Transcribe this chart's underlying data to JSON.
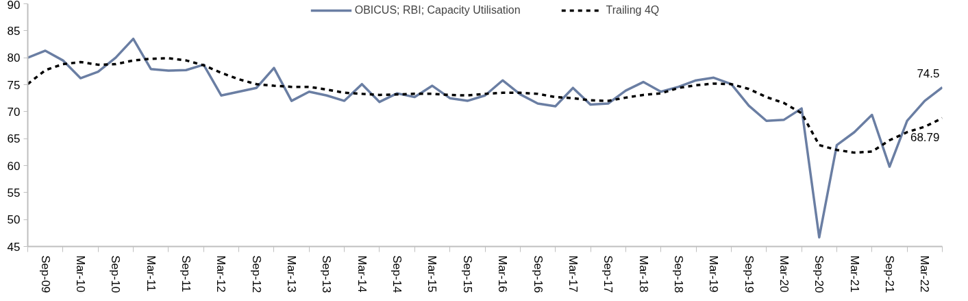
{
  "chart_data": {
    "type": "line",
    "categories": [
      null,
      "Sep-09",
      null,
      "Mar-10",
      null,
      "Sep-10",
      null,
      "Mar-11",
      null,
      "Sep-11",
      null,
      "Mar-12",
      null,
      "Sep-12",
      null,
      "Mar-13",
      null,
      "Sep-13",
      null,
      "Mar-14",
      null,
      "Sep-14",
      null,
      "Mar-15",
      null,
      "Sep-15",
      null,
      "Mar-16",
      null,
      "Sep-16",
      null,
      "Mar-17",
      null,
      "Sep-17",
      null,
      "Mar-18",
      null,
      "Sep-18",
      null,
      "Mar-19",
      null,
      "Sep-19",
      null,
      "Mar-20",
      null,
      "Sep-20",
      null,
      "Mar-21",
      null,
      "Sep-21",
      null,
      "Mar-22",
      null
    ],
    "series": [
      {
        "name": "OBICUS; RBI; Capacity Utilisation",
        "color": "#6a7ea3",
        "line_style": "solid",
        "values": [
          80.0,
          81.3,
          79.5,
          76.2,
          77.4,
          80.0,
          83.5,
          77.9,
          77.6,
          77.7,
          78.7,
          73.0,
          73.7,
          74.4,
          78.1,
          72.0,
          73.7,
          73.0,
          72.0,
          75.1,
          71.8,
          73.4,
          72.7,
          74.8,
          72.5,
          72.0,
          73.0,
          75.8,
          73.2,
          71.5,
          71.0,
          74.4,
          71.3,
          71.5,
          73.9,
          75.5,
          73.7,
          74.6,
          75.8,
          76.3,
          75.1,
          71.1,
          68.3,
          68.5,
          70.6,
          46.7,
          63.8,
          66.2,
          69.4,
          59.8,
          68.3,
          72.0,
          74.5
        ],
        "value_labels": [
          null,
          null,
          null,
          null,
          null,
          null,
          null,
          null,
          null,
          null,
          null,
          null,
          null,
          null,
          null,
          null,
          null,
          null,
          null,
          null,
          null,
          null,
          null,
          null,
          null,
          null,
          null,
          null,
          null,
          null,
          null,
          null,
          null,
          null,
          null,
          null,
          null,
          null,
          null,
          null,
          null,
          null,
          null,
          null,
          null,
          null,
          null,
          null,
          null,
          null,
          null,
          null,
          "74.5"
        ]
      },
      {
        "name": "Trailing 4Q",
        "color": "#000000",
        "line_style": "dashed",
        "values": [
          75.1,
          77.7,
          78.8,
          79.2,
          78.7,
          78.8,
          79.5,
          79.8,
          79.9,
          79.5,
          78.6,
          77.2,
          76.0,
          75.1,
          74.8,
          74.6,
          74.6,
          74.1,
          73.5,
          73.3,
          73.1,
          73.2,
          73.3,
          73.3,
          73.1,
          73.0,
          73.3,
          73.5,
          73.5,
          73.3,
          72.7,
          72.5,
          72.1,
          72.0,
          72.6,
          73.1,
          73.4,
          74.4,
          74.9,
          75.2,
          75.1,
          74.2,
          72.7,
          71.6,
          69.7,
          63.8,
          62.9,
          62.4,
          62.6,
          64.7,
          66.2,
          67.2,
          68.79
        ],
        "value_labels": [
          null,
          null,
          null,
          null,
          null,
          null,
          null,
          null,
          null,
          null,
          null,
          null,
          null,
          null,
          null,
          null,
          null,
          null,
          null,
          null,
          null,
          null,
          null,
          null,
          null,
          null,
          null,
          null,
          null,
          null,
          null,
          null,
          null,
          null,
          null,
          null,
          null,
          null,
          null,
          null,
          null,
          null,
          null,
          null,
          null,
          null,
          null,
          null,
          null,
          null,
          null,
          null,
          "68.79"
        ]
      }
    ],
    "ylim": [
      45,
      90
    ],
    "yticks": [
      45,
      50,
      55,
      60,
      65,
      70,
      75,
      80,
      85,
      90
    ],
    "legend": "top",
    "grid": false
  }
}
